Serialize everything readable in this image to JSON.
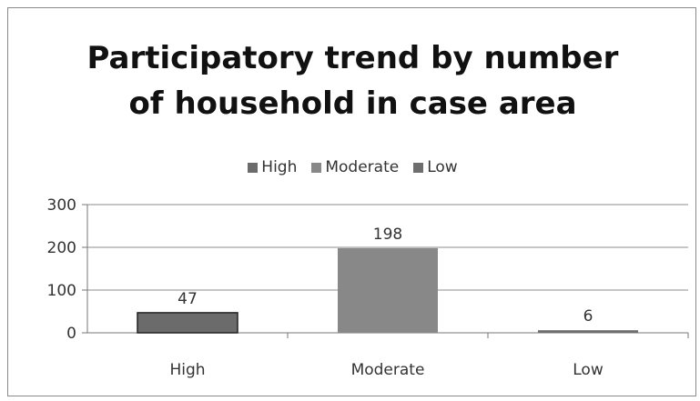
{
  "chart_data": {
    "type": "bar",
    "title_lines": [
      "Participatory trend by number",
      "of household in case area"
    ],
    "categories": [
      "High",
      "Moderate",
      "Low"
    ],
    "values": [
      47,
      198,
      6
    ],
    "data_labels": [
      "47",
      "198",
      "6"
    ],
    "bar_colors": [
      "#6b6b6b",
      "#888888",
      "#6e6e6e"
    ],
    "legend": [
      "High",
      "Moderate",
      "Low"
    ],
    "legend_colors": [
      "#6b6b6b",
      "#888888",
      "#6e6e6e"
    ],
    "ylim": [
      0,
      300
    ],
    "yticks": [
      0,
      100,
      200,
      300
    ],
    "ytick_labels": [
      "0",
      "100",
      "200",
      "300"
    ],
    "grid": true,
    "legend_position": "top"
  }
}
